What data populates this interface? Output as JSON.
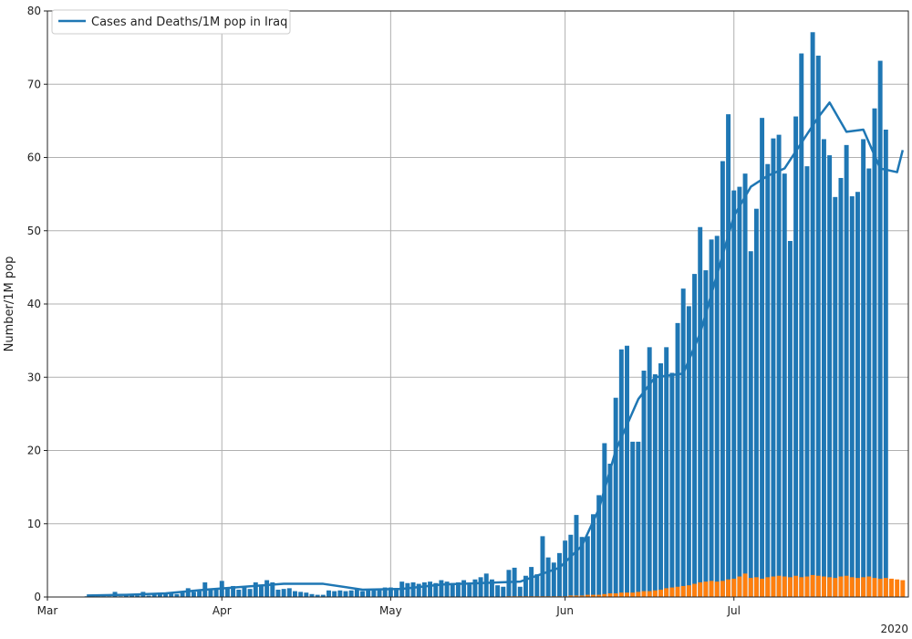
{
  "chart_data": {
    "type": "bar",
    "title": "",
    "xlabel": "",
    "ylabel": "Number/1M pop",
    "year_label": "2020",
    "x_ticks": [
      {
        "label": "Mar",
        "date": "2020-03-01"
      },
      {
        "label": "Apr",
        "date": "2020-04-01"
      },
      {
        "label": "May",
        "date": "2020-05-01"
      },
      {
        "label": "Jun",
        "date": "2020-06-01"
      },
      {
        "label": "Jul",
        "date": "2020-07-01"
      }
    ],
    "y_ticks": [
      0,
      10,
      20,
      30,
      40,
      50,
      60,
      70,
      80
    ],
    "ylim": [
      0,
      80
    ],
    "xlim": [
      "2020-03-01",
      "2020-08-01"
    ],
    "grid": true,
    "legend": {
      "placement": "top-left",
      "entries": [
        "Cases and Deaths/1M pop in Iraq"
      ]
    },
    "series": [
      {
        "name": "Cases and Deaths/1M pop in Iraq",
        "kind": "line",
        "color": "#1f77b4",
        "points": [
          [
            "2020-03-08",
            0.2
          ],
          [
            "2020-03-15",
            0.3
          ],
          [
            "2020-03-22",
            0.5
          ],
          [
            "2020-03-29",
            1.0
          ],
          [
            "2020-04-05",
            1.4
          ],
          [
            "2020-04-12",
            1.8
          ],
          [
            "2020-04-19",
            1.8
          ],
          [
            "2020-04-26",
            1.0
          ],
          [
            "2020-05-03",
            1.1
          ],
          [
            "2020-05-10",
            1.7
          ],
          [
            "2020-05-17",
            1.9
          ],
          [
            "2020-05-24",
            2.1
          ],
          [
            "2020-05-31",
            4.0
          ],
          [
            "2020-06-04",
            7.0
          ],
          [
            "2020-06-07",
            12.0
          ],
          [
            "2020-06-10",
            20.0
          ],
          [
            "2020-06-14",
            27.0
          ],
          [
            "2020-06-17",
            30.0
          ],
          [
            "2020-06-22",
            30.5
          ],
          [
            "2020-06-25",
            36.0
          ],
          [
            "2020-06-28",
            44.0
          ],
          [
            "2020-07-01",
            52.0
          ],
          [
            "2020-07-04",
            56.0
          ],
          [
            "2020-07-07",
            57.5
          ],
          [
            "2020-07-10",
            58.5
          ],
          [
            "2020-07-13",
            62.0
          ],
          [
            "2020-07-16",
            65.5
          ],
          [
            "2020-07-18",
            67.5
          ],
          [
            "2020-07-21",
            63.5
          ],
          [
            "2020-07-24",
            63.8
          ],
          [
            "2020-07-27",
            58.5
          ],
          [
            "2020-07-30",
            58.0
          ],
          [
            "2020-07-31",
            61.0
          ]
        ]
      },
      {
        "name": "Cases",
        "kind": "bar",
        "color": "#1f77b4",
        "start_date": "2020-03-08",
        "values": [
          0.1,
          0.1,
          0.1,
          0.1,
          0.1,
          0.7,
          0.1,
          0.2,
          0.4,
          0.2,
          0.7,
          0.2,
          0.4,
          0.6,
          0.4,
          0.5,
          0.4,
          0.8,
          1.2,
          0.7,
          0.8,
          2.0,
          1.1,
          1.2,
          2.2,
          1.3,
          1.5,
          1.0,
          1.3,
          1.1,
          2.0,
          1.7,
          2.3,
          2.0,
          1.0,
          1.1,
          1.2,
          0.8,
          0.7,
          0.6,
          0.4,
          0.3,
          0.3,
          0.9,
          0.8,
          0.9,
          0.8,
          0.9,
          1.0,
          0.8,
          1.0,
          1.1,
          1.0,
          1.3,
          1.3,
          1.2,
          2.1,
          1.9,
          2.0,
          1.8,
          2.0,
          2.1,
          1.9,
          2.3,
          2.1,
          1.9,
          2.0,
          2.3,
          1.7,
          2.4,
          2.7,
          3.2,
          2.4,
          1.6,
          1.4,
          3.7,
          4.0,
          1.4,
          2.9,
          4.1,
          3.1,
          8.3,
          5.4,
          4.7,
          6.0,
          7.7,
          8.5,
          11.2,
          8.2,
          8.3,
          11.3,
          13.9,
          21.0,
          18.2,
          27.2,
          33.8,
          34.3,
          21.2,
          21.2,
          30.9,
          34.1,
          30.4,
          31.9,
          34.1,
          30.6,
          37.4,
          42.1,
          39.7,
          44.1,
          50.5,
          44.6,
          48.8,
          49.3,
          59.5,
          65.9,
          55.5,
          56.0,
          57.8,
          47.2,
          53.0,
          65.4,
          59.1,
          62.6,
          63.1,
          57.8,
          48.6,
          65.6,
          74.2,
          58.8,
          77.1,
          73.9,
          62.5,
          60.3,
          54.6,
          57.2,
          61.7,
          54.7,
          55.3,
          62.5,
          58.5,
          66.7,
          73.2,
          63.8
        ]
      },
      {
        "name": "Deaths",
        "kind": "bar",
        "color": "#ff7f0e",
        "start_date": "2020-03-08",
        "values": [
          0.05,
          0.05,
          0.05,
          0.05,
          0.05,
          0.05,
          0.05,
          0.05,
          0.05,
          0.05,
          0.05,
          0.05,
          0.05,
          0.05,
          0.05,
          0.05,
          0.05,
          0.05,
          0.05,
          0.05,
          0.05,
          0.05,
          0.05,
          0.05,
          0.05,
          0.05,
          0.05,
          0.05,
          0.05,
          0.05,
          0.05,
          0.05,
          0.05,
          0.05,
          0.05,
          0.05,
          0.05,
          0.05,
          0.05,
          0.05,
          0.05,
          0.05,
          0.05,
          0.05,
          0.05,
          0.05,
          0.05,
          0.05,
          0.05,
          0.05,
          0.05,
          0.05,
          0.05,
          0.05,
          0.05,
          0.05,
          0.05,
          0.05,
          0.05,
          0.05,
          0.05,
          0.05,
          0.05,
          0.05,
          0.05,
          0.05,
          0.05,
          0.05,
          0.05,
          0.05,
          0.05,
          0.05,
          0.05,
          0.05,
          0.05,
          0.1,
          0.1,
          0.1,
          0.1,
          0.1,
          0.1,
          0.1,
          0.1,
          0.1,
          0.1,
          0.1,
          0.2,
          0.2,
          0.2,
          0.3,
          0.3,
          0.3,
          0.4,
          0.5,
          0.5,
          0.6,
          0.6,
          0.6,
          0.7,
          0.8,
          0.8,
          0.9,
          1.0,
          1.2,
          1.3,
          1.4,
          1.5,
          1.6,
          1.8,
          2.0,
          2.1,
          2.2,
          2.1,
          2.2,
          2.4,
          2.5,
          2.8,
          3.2,
          2.6,
          2.7,
          2.5,
          2.7,
          2.8,
          2.9,
          2.8,
          2.7,
          2.9,
          2.7,
          2.8,
          3.0,
          2.9,
          2.8,
          2.7,
          2.6,
          2.8,
          2.9,
          2.7,
          2.6,
          2.7,
          2.8,
          2.6,
          2.5,
          2.6,
          2.5,
          2.4,
          2.3
        ]
      }
    ]
  }
}
